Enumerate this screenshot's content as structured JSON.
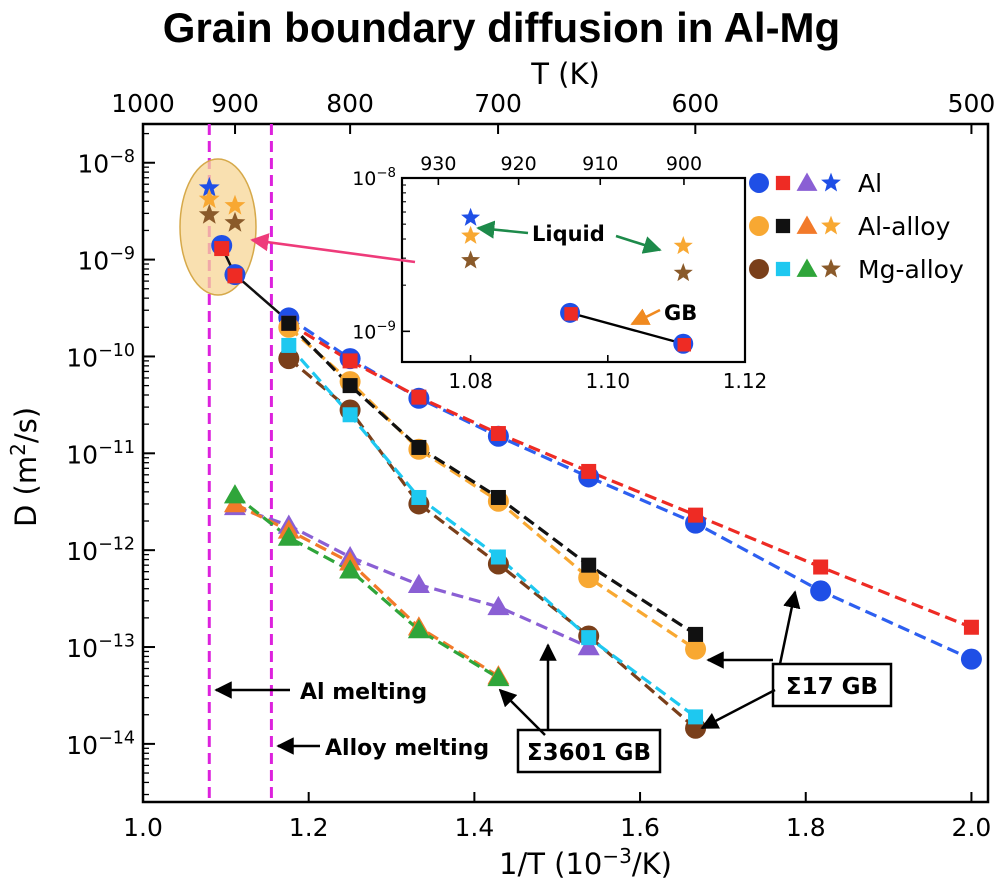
{
  "chart_data": {
    "type": "scatter",
    "title": "Grain boundary diffusion in Al-Mg",
    "xlabel": "1/T (10",
    "xlabel_sup": "−3",
    "xlabel_tail": "/K)",
    "ylabel": "D (m",
    "ylabel_sup": "2",
    "ylabel_tail": "/s)",
    "top_xlabel": "T (K)",
    "xlim": [
      1.0,
      2.02
    ],
    "ylim_log10": [
      -14.6,
      -7.6
    ],
    "yscale": "log",
    "x_ticks": [
      "1.0",
      "1.2",
      "1.4",
      "1.6",
      "1.8",
      "2.0"
    ],
    "x_tick_values": [
      1.0,
      1.2,
      1.4,
      1.6,
      1.8,
      2.0
    ],
    "y_ticks": [
      {
        "base": "10",
        "exp": "−8",
        "value": -8
      },
      {
        "base": "10",
        "exp": "−9",
        "value": -9
      },
      {
        "base": "10",
        "exp": "−10",
        "value": -10
      },
      {
        "base": "10",
        "exp": "−11",
        "value": -11
      },
      {
        "base": "10",
        "exp": "−12",
        "value": -12
      },
      {
        "base": "10",
        "exp": "−13",
        "value": -13
      },
      {
        "base": "10",
        "exp": "−14",
        "value": -14
      }
    ],
    "top_ticks": [
      {
        "label": "1000",
        "x": 1.0
      },
      {
        "label": "900",
        "x": 1.1111
      },
      {
        "label": "800",
        "x": 1.25
      },
      {
        "label": "700",
        "x": 1.4286
      },
      {
        "label": "600",
        "x": 1.6667
      },
      {
        "label": "500",
        "x": 2.0
      }
    ],
    "vlines": [
      {
        "x": 1.08,
        "label": "Al melting",
        "color": "#dd22dd"
      },
      {
        "x": 1.155,
        "label": "Alloy melting",
        "color": "#dd22dd"
      }
    ],
    "series": [
      {
        "name": "Al",
        "gb": "Σ17 GB",
        "marker": "circle",
        "color": "#1f4fe6",
        "line_color": "#2d5ff0",
        "points": [
          [
            1.095,
            1.4e-09
          ],
          [
            1.111,
            7e-10
          ],
          [
            1.176,
            2.5e-10
          ],
          [
            1.25,
            9.5e-11
          ],
          [
            1.333,
            3.7e-11
          ],
          [
            1.429,
            1.5e-11
          ],
          [
            1.538,
            5.7e-12
          ],
          [
            1.667,
            1.9e-12
          ],
          [
            1.818,
            3.8e-13
          ],
          [
            2.0,
            7.5e-14
          ]
        ]
      },
      {
        "name": "Al",
        "gb": "Σ17 GB",
        "marker": "square",
        "color": "#ee2b24",
        "line_color": "#ee2b24",
        "points": [
          [
            1.095,
            1.3e-09
          ],
          [
            1.111,
            6.8e-10
          ],
          [
            1.176,
            2.2e-10
          ],
          [
            1.25,
            9e-11
          ],
          [
            1.333,
            3.8e-11
          ],
          [
            1.429,
            1.6e-11
          ],
          [
            1.538,
            6.5e-12
          ],
          [
            1.667,
            2.3e-12
          ],
          [
            1.818,
            6.7e-13
          ],
          [
            2.0,
            1.6e-13
          ]
        ]
      },
      {
        "name": "Al-alloy",
        "gb": "Σ17 GB",
        "marker": "circle",
        "color": "#f8a832",
        "line_color": "#f8a832",
        "points": [
          [
            1.176,
            2e-10
          ],
          [
            1.25,
            5.5e-11
          ],
          [
            1.333,
            1.1e-11
          ],
          [
            1.429,
            3.2e-12
          ],
          [
            1.538,
            5.2e-13
          ],
          [
            1.667,
            9.5e-14
          ]
        ]
      },
      {
        "name": "Al-alloy",
        "gb": "Σ17 GB",
        "marker": "square",
        "color": "#111111",
        "line_color": "#111111",
        "points": [
          [
            1.176,
            2.2e-10
          ],
          [
            1.25,
            5e-11
          ],
          [
            1.333,
            1.15e-11
          ],
          [
            1.429,
            3.5e-12
          ],
          [
            1.538,
            7e-13
          ],
          [
            1.667,
            1.35e-13
          ]
        ]
      },
      {
        "name": "Mg-alloy",
        "gb": "Σ17 GB",
        "marker": "circle",
        "color": "#7a3f1a",
        "line_color": "#7a3f1a",
        "points": [
          [
            1.176,
            9.5e-11
          ],
          [
            1.25,
            2.8e-11
          ],
          [
            1.333,
            3e-12
          ],
          [
            1.429,
            7.2e-13
          ],
          [
            1.538,
            1.3e-13
          ],
          [
            1.667,
            1.45e-14
          ]
        ]
      },
      {
        "name": "Mg-alloy",
        "gb": "Σ17 GB",
        "marker": "square",
        "color": "#1ec8f0",
        "line_color": "#1ec8f0",
        "points": [
          [
            1.176,
            1.3e-10
          ],
          [
            1.25,
            2.5e-11
          ],
          [
            1.333,
            3.5e-12
          ],
          [
            1.429,
            8.5e-13
          ],
          [
            1.538,
            1.25e-13
          ],
          [
            1.667,
            1.9e-14
          ]
        ]
      },
      {
        "name": "Al",
        "gb": "Σ3601 GB",
        "marker": "triangle",
        "color": "#8a5fd4",
        "line_color": "#8a5fd4",
        "points": [
          [
            1.111,
            2.8e-12
          ],
          [
            1.176,
            1.8e-12
          ],
          [
            1.25,
            8.5e-13
          ],
          [
            1.333,
            4.4e-13
          ],
          [
            1.429,
            2.6e-13
          ],
          [
            1.538,
            1e-13
          ]
        ]
      },
      {
        "name": "Al-alloy",
        "gb": "Σ3601 GB",
        "marker": "triangle",
        "color": "#f27a2a",
        "line_color": "#f27a2a",
        "points": [
          [
            1.111,
            3e-12
          ],
          [
            1.176,
            1.6e-12
          ],
          [
            1.25,
            7.5e-13
          ],
          [
            1.333,
            1.6e-13
          ],
          [
            1.429,
            5e-14
          ]
        ]
      },
      {
        "name": "Mg-alloy",
        "gb": "Σ3601 GB",
        "marker": "triangle",
        "color": "#2fa53a",
        "line_color": "#2fa53a",
        "points": [
          [
            1.111,
            3.7e-12
          ],
          [
            1.176,
            1.35e-12
          ],
          [
            1.25,
            6.2e-13
          ],
          [
            1.333,
            1.5e-13
          ],
          [
            1.429,
            4.8e-14
          ]
        ]
      }
    ],
    "liquid_stars": [
      {
        "name": "Al",
        "color": "#1f4fe6",
        "points": [
          [
            1.08,
            5.5e-09
          ]
        ]
      },
      {
        "name": "Al-alloy",
        "color": "#f8a832",
        "points": [
          [
            1.08,
            4.2e-09
          ],
          [
            1.111,
            3.6e-09
          ]
        ]
      },
      {
        "name": "Mg-alloy",
        "color": "#8a5a2a",
        "points": [
          [
            1.08,
            2.9e-09
          ],
          [
            1.111,
            2.4e-09
          ]
        ]
      }
    ],
    "legend": {
      "placement": "top-right",
      "entries": [
        {
          "label": "Al",
          "colors": [
            "#1f4fe6",
            "#ee2b24",
            "#8a5fd4",
            "#1f4fe6"
          ]
        },
        {
          "label": "Al-alloy",
          "colors": [
            "#f8a832",
            "#111111",
            "#f27a2a",
            "#f8a832"
          ]
        },
        {
          "label": "Mg-alloy",
          "colors": [
            "#7a3f1a",
            "#1ec8f0",
            "#2fa53a",
            "#8a5a2a"
          ]
        }
      ]
    },
    "annotations": {
      "sigma17": "Σ17 GB",
      "sigma3601": "Σ3601 GB"
    },
    "inset": {
      "xlim": [
        1.07,
        1.12
      ],
      "ylim_log10": [
        -9.2,
        -8.0
      ],
      "x_ticks": [
        "1.08",
        "1.10",
        "1.12"
      ],
      "x_tick_values": [
        1.08,
        1.1,
        1.12
      ],
      "top_ticks": [
        {
          "label": "930",
          "x": 1.0753
        },
        {
          "label": "920",
          "x": 1.087
        },
        {
          "label": "910",
          "x": 1.0989
        },
        {
          "label": "900",
          "x": 1.1111
        }
      ],
      "y_ticks": [
        {
          "base": "10",
          "exp": "−8",
          "value": -8
        },
        {
          "base": "10",
          "exp": "−9",
          "value": -9
        }
      ],
      "liquid_label": "Liquid",
      "gb_label": "GB",
      "stars": [
        {
          "x": 1.08,
          "y": 5.5e-09,
          "color": "#1f4fe6"
        },
        {
          "x": 1.08,
          "y": 4.2e-09,
          "color": "#f8a832"
        },
        {
          "x": 1.08,
          "y": 2.9e-09,
          "color": "#8a5a2a"
        },
        {
          "x": 1.111,
          "y": 3.6e-09,
          "color": "#f8a832"
        },
        {
          "x": 1.111,
          "y": 2.4e-09,
          "color": "#8a5a2a"
        }
      ],
      "gb_points": [
        {
          "x": 1.0945,
          "y": 1.32e-09
        },
        {
          "x": 1.111,
          "y": 8.3e-10
        }
      ]
    }
  }
}
